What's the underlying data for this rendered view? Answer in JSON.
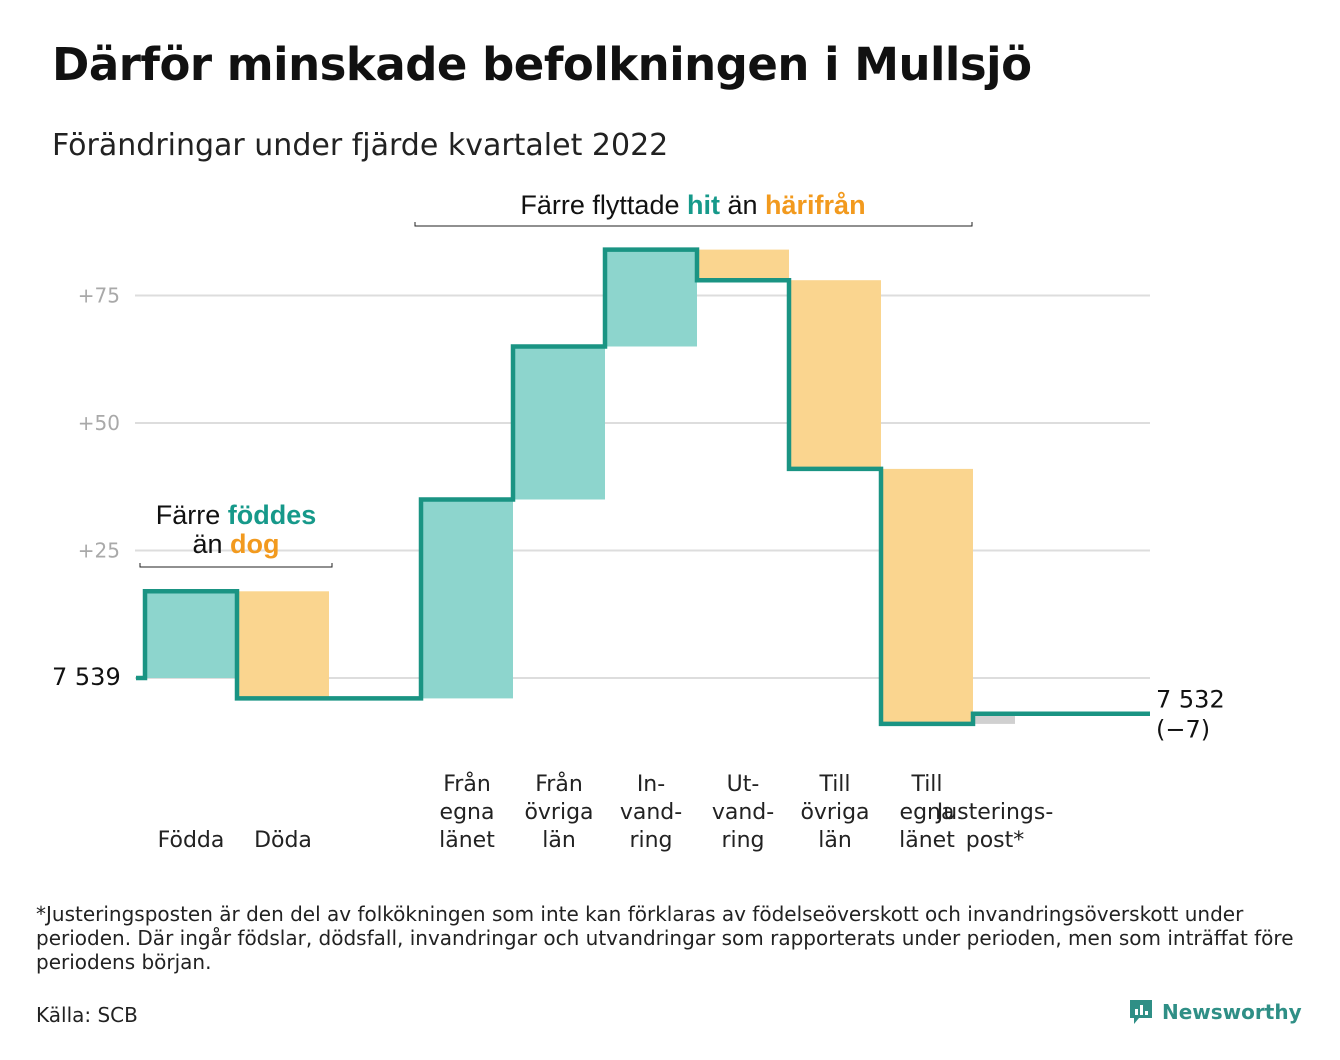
{
  "title": "Därför minskade befolkningen i Mullsjö",
  "subtitle": "Förändringar under fjärde kvartalet 2022",
  "footnote": "*Justeringsposten är den del av folkökningen som inte kan förklaras av födelseöverskott och invandringsöverskott under perioden. Där ingår födslar, dödsfall, invandringar och utvandringar som rapporterats under perioden, men som inträffat före periodens början.",
  "source": "Källa: SCB",
  "brand": "Newsworthy",
  "colors": {
    "increase": "#8dd5cd",
    "decrease": "#fad58f",
    "adjustment": "#d0d0d0",
    "line": "#1a9483",
    "teal_text": "#16998a",
    "orange_text": "#f29a1e",
    "grid": "#dddddd",
    "tick_text": "#a9a9a9"
  },
  "chart_data": {
    "type": "waterfall",
    "start_value": 7539,
    "start_label": "7 539",
    "end_label": "7 532",
    "end_change_label": "(−7)",
    "yticks": [
      {
        "value": 25,
        "label": "+25"
      },
      {
        "value": 50,
        "label": "+50"
      },
      {
        "value": 75,
        "label": "+75"
      }
    ],
    "ylim": [
      -12,
      90
    ],
    "steps": [
      {
        "key": "fodda",
        "label_lines": [
          "Födda"
        ],
        "change": 17,
        "kind": "increase"
      },
      {
        "key": "doda",
        "label_lines": [
          "Döda"
        ],
        "change": -21,
        "kind": "decrease"
      },
      {
        "key": "gap",
        "label_lines": [],
        "change": 0,
        "kind": "gap"
      },
      {
        "key": "fran-egna-lanet",
        "label_lines": [
          "Från",
          "egna",
          "länet"
        ],
        "change": 39,
        "kind": "increase"
      },
      {
        "key": "fran-ovriga-lan",
        "label_lines": [
          "Från",
          "övriga",
          "län"
        ],
        "change": 30,
        "kind": "increase"
      },
      {
        "key": "invandring",
        "label_lines": [
          "In-",
          "vand-",
          "ring"
        ],
        "change": 19,
        "kind": "increase"
      },
      {
        "key": "utvandring",
        "label_lines": [
          "Ut-",
          "vand-",
          "ring"
        ],
        "change": -6,
        "kind": "decrease"
      },
      {
        "key": "till-ovriga-lan",
        "label_lines": [
          "Till",
          "övriga",
          "län"
        ],
        "change": -37,
        "kind": "decrease"
      },
      {
        "key": "till-egna-lanet",
        "label_lines": [
          "Till",
          "egna",
          "länet"
        ],
        "change": -50,
        "kind": "decrease"
      },
      {
        "key": "justeringspost",
        "label_lines": [
          "Justerings-",
          "post*"
        ],
        "change": 2,
        "kind": "adjustment"
      }
    ],
    "annotations": [
      {
        "key": "births-deaths",
        "segments": [
          {
            "line": 0,
            "text": "Färre ",
            "style": "plain"
          },
          {
            "line": 0,
            "text": "föddes",
            "style": "increase"
          },
          {
            "line": 1,
            "text": "än ",
            "style": "plain"
          },
          {
            "line": 1,
            "text": "dog",
            "style": "decrease"
          }
        ]
      },
      {
        "key": "migration",
        "segments": [
          {
            "line": 0,
            "text": "Färre flyttade ",
            "style": "plain"
          },
          {
            "line": 0,
            "text": "hit",
            "style": "increase"
          },
          {
            "line": 0,
            "text": " än ",
            "style": "plain"
          },
          {
            "line": 0,
            "text": "härifrån",
            "style": "decrease"
          }
        ]
      }
    ]
  }
}
